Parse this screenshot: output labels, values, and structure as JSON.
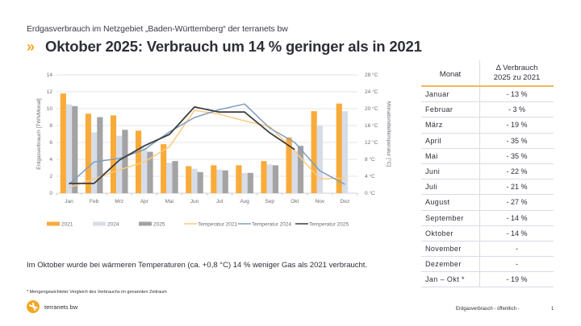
{
  "header": {
    "subtitle": "Erdgasverbrauch im Netzgebiet „Baden-Württemberg“ der terranets bw",
    "chevron_icon": "»",
    "title": "Oktober 2025: Verbrauch um 14 % geringer als in 2021"
  },
  "colors": {
    "bar_2021": "#f9ab3a",
    "bar_2024": "#d7dde8",
    "bar_2025": "#a3a3a3",
    "temp_2021": "#fcc97f",
    "temp_2024": "#7f9dbf",
    "temp_2025": "#3f3f42",
    "accent": "#f5a623"
  },
  "chart_data": {
    "type": "bar",
    "title": "",
    "categories": [
      "Jan",
      "Feb",
      "Mrz",
      "Apr",
      "Mai",
      "Jun",
      "Jul",
      "Aug",
      "Sep",
      "Okt",
      "Nov",
      "Dez"
    ],
    "ylabel": "Erdgasverbrauch [TWh/Monat]",
    "ylabel_right": "Monatsmitteltemperatur [°C]",
    "ylim": [
      0,
      14
    ],
    "y_ticks": [
      "0",
      "2",
      "4",
      "6",
      "8",
      "10",
      "12",
      "14"
    ],
    "ylim_right": [
      0,
      28
    ],
    "y_ticks_right": [
      "0 °C",
      "4 °C",
      "8 °C",
      "12 °C",
      "16 °C",
      "20 °C",
      "24 °C",
      "28 °C"
    ],
    "grid": true,
    "legend_position": "bottom",
    "series": [
      {
        "name": "2021",
        "kind": "bar",
        "values": [
          11.8,
          9.4,
          9.2,
          7.4,
          5.8,
          3.2,
          3.3,
          3.3,
          3.8,
          6.6,
          9.7,
          10.6
        ]
      },
      {
        "name": "2024",
        "kind": "bar",
        "values": [
          10.5,
          7.2,
          6.8,
          5.4,
          3.6,
          2.9,
          2.8,
          2.4,
          3.4,
          5.0,
          8.0,
          9.7
        ]
      },
      {
        "name": "2025",
        "kind": "bar",
        "values": [
          10.3,
          9.0,
          7.5,
          4.9,
          3.8,
          2.5,
          2.7,
          2.4,
          3.3,
          5.6,
          null,
          null
        ]
      },
      {
        "name": "Temperatur 2021",
        "kind": "line",
        "axis": "right",
        "values": [
          1.3,
          3.4,
          5.5,
          7.4,
          11.0,
          19.6,
          18.7,
          17.1,
          15.8,
          9.9,
          3.4,
          3.6
        ]
      },
      {
        "name": "Temperatur 2024",
        "kind": "line",
        "axis": "right",
        "values": [
          2.1,
          7.4,
          8.2,
          10.3,
          14.5,
          17.9,
          19.8,
          21.1,
          15.4,
          12.0,
          5.3,
          2.1
        ]
      },
      {
        "name": "Temperatur 2025",
        "kind": "line",
        "axis": "right",
        "values": [
          2.3,
          2.3,
          7.8,
          11.2,
          13.9,
          20.4,
          19.2,
          19.2,
          14.3,
          10.3,
          null,
          null
        ]
      }
    ]
  },
  "table": {
    "header_month": "Monat",
    "header_delta_line1": "Δ Verbrauch",
    "header_delta_line2": "2025 zu 2021",
    "rows": [
      {
        "month": "Januar",
        "delta": "- 13 %"
      },
      {
        "month": "Februar",
        "delta": "- 3 %"
      },
      {
        "month": "März",
        "delta": "- 19 %"
      },
      {
        "month": "April",
        "delta": "- 35 %"
      },
      {
        "month": "Mai",
        "delta": "- 35 %"
      },
      {
        "month": "Juni",
        "delta": "- 22 %"
      },
      {
        "month": "Juli",
        "delta": "- 21 %"
      },
      {
        "month": "August",
        "delta": "- 27 %"
      },
      {
        "month": "September",
        "delta": "- 14 %"
      },
      {
        "month": "Oktober",
        "delta": "- 14 %"
      },
      {
        "month": "November",
        "delta": "-"
      },
      {
        "month": "Dezember",
        "delta": "-"
      },
      {
        "month": "Jan – Okt *",
        "delta": "- 19 %"
      }
    ]
  },
  "note": "Im Oktober wurde bei wärmeren Temperaturen (ca. +0,8 °C) 14 % weniger Gas als 2021 verbraucht.",
  "footnote": "* Mengengewichteter Vergleich des Verbrauchs im genannten Zeitraum",
  "footer": {
    "logo_name": "terranets bw",
    "doc_label": "Erdgasverbrauch - öffentlich -",
    "page_number": "1"
  }
}
